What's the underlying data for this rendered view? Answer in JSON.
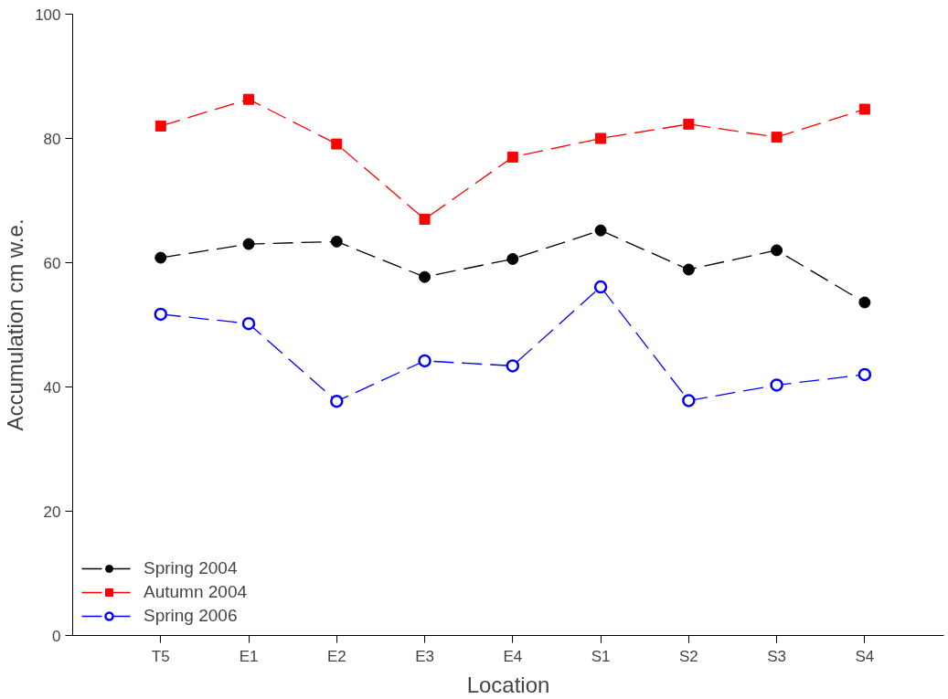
{
  "chart_data": {
    "type": "line",
    "xlabel": "Location",
    "ylabel": "Accumulation cm w.e.",
    "categories": [
      "T5",
      "E1",
      "E2",
      "E3",
      "E4",
      "S1",
      "S2",
      "S3",
      "S4"
    ],
    "series": [
      {
        "name": "Spring 2004",
        "color": "#000000",
        "marker": "circle",
        "values": [
          60.8,
          63.0,
          63.4,
          57.7,
          60.6,
          65.2,
          58.9,
          62.0,
          53.6
        ]
      },
      {
        "name": "Autumn 2004",
        "color": "#ff0000",
        "marker": "square",
        "values": [
          82.0,
          86.3,
          79.1,
          67.0,
          77.0,
          80.0,
          82.3,
          80.2,
          84.7
        ]
      },
      {
        "name": "Spring 2006",
        "color": "#0000ff",
        "marker": "circle_open",
        "values": [
          51.7,
          50.2,
          37.7,
          44.2,
          43.4,
          56.1,
          37.8,
          40.3,
          42.0
        ]
      }
    ],
    "ylim": [
      0,
      100
    ],
    "yticks": [
      0,
      20,
      40,
      60,
      80,
      100
    ],
    "grid": false,
    "legend": "bottom left",
    "line_style": "dashed"
  }
}
